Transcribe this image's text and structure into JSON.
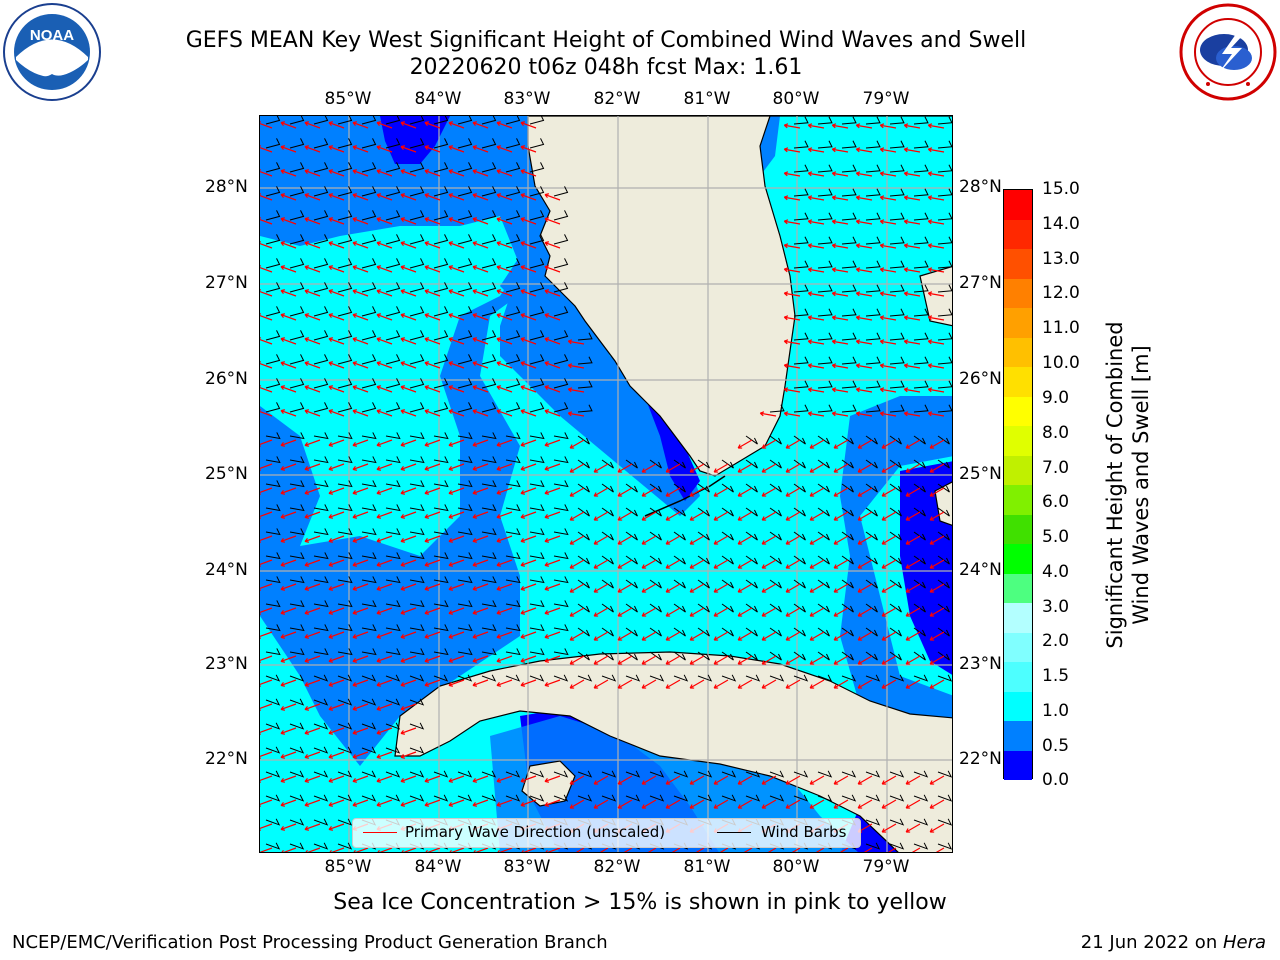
{
  "title": {
    "line1": "GEFS MEAN Key West Significant Height of Combined Wind Waves and Swell",
    "line2": "20220620 t06z 048h fcst   Max: 1.61"
  },
  "logos": {
    "noaa_text": "NOAA",
    "noaa_ring": "NATIONAL OCEANIC AND ATMOSPHERIC ADMINISTRATION · U.S. DEPARTMENT OF COMMERCE",
    "nws_ring": "NATIONAL WEATHER SERVICE"
  },
  "map": {
    "lon_labels": [
      "85°W",
      "84°W",
      "83°W",
      "82°W",
      "81°W",
      "80°W",
      "79°W"
    ],
    "lat_labels": [
      "28°N",
      "27°N",
      "26°N",
      "25°N",
      "24°N",
      "23°N",
      "22°N"
    ],
    "colors": {
      "land": "#eeecdc",
      "wave_0_0_5": "#0000ff",
      "wave_0_5_1_0": "#0080ff",
      "wave_1_0_1_5": "#00ffff",
      "gridline": "#b0b0b0",
      "wave_arrow": "#ff0000",
      "wind_barb": "#000000"
    }
  },
  "legend": {
    "wave_label": "Primary Wave Direction (unscaled)",
    "barb_label": "Wind Barbs"
  },
  "colorbar": {
    "ticks": [
      "15.0",
      "14.0",
      "13.0",
      "12.0",
      "11.0",
      "10.0",
      "9.0",
      "8.0",
      "7.0",
      "6.0",
      "5.0",
      "4.0",
      "3.0",
      "2.0",
      "1.5",
      "1.0",
      "0.5",
      "0.0"
    ],
    "label_line1": "Significant Height of Combined",
    "label_line2": "Wind Waves and Swell [m]",
    "colors": [
      "#0000ff",
      "#0080ff",
      "#00ffff",
      "#4dffff",
      "#80ffff",
      "#b3ffff",
      "#4dff80",
      "#00ff00",
      "#40e000",
      "#80f000",
      "#c0f000",
      "#e0ff00",
      "#ffff00",
      "#ffe000",
      "#ffc000",
      "#ffa000",
      "#ff8000",
      "#ff5000",
      "#ff2800",
      "#ff0000"
    ]
  },
  "note": "Sea Ice Concentration > 15% is shown in pink to yellow",
  "credit_left": "NCEP/EMC/Verification Post Processing Product Generation Branch",
  "credit_date": "21 Jun 2022 on ",
  "credit_host": "Hera"
}
